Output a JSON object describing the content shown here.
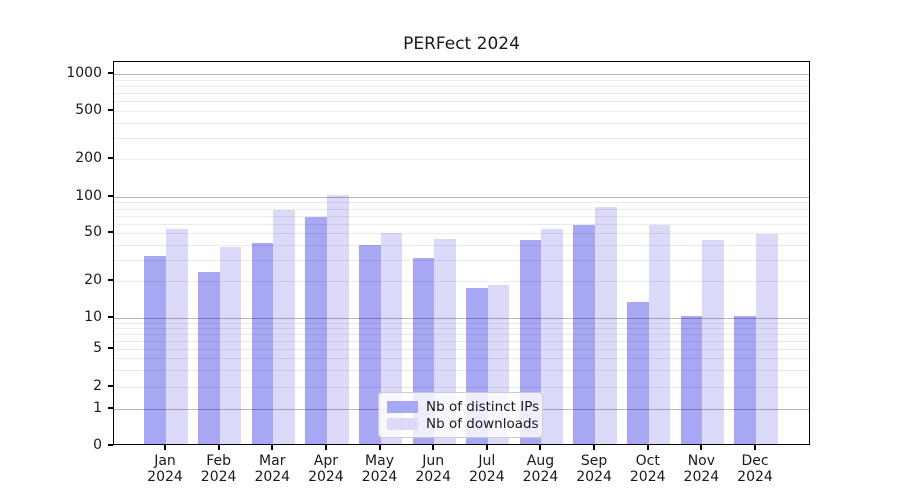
{
  "chart_data": {
    "type": "bar",
    "title": "PERFect 2024",
    "categories": [
      "Jan",
      "Feb",
      "Mar",
      "Apr",
      "May",
      "Jun",
      "Jul",
      "Aug",
      "Sep",
      "Oct",
      "Nov",
      "Dec"
    ],
    "year_label": "2024",
    "series": [
      {
        "name": "Nb of distinct IPs",
        "color": "#a7a7f3",
        "values": [
          31,
          23,
          40,
          66,
          38,
          30,
          17,
          42,
          56,
          13,
          10,
          10
        ]
      },
      {
        "name": "Nb of downloads",
        "color": "#dbdbf9",
        "values": [
          52,
          37,
          75,
          100,
          48,
          43,
          18,
          52,
          80,
          56,
          42,
          47
        ]
      }
    ],
    "yticks": [
      0,
      1,
      2,
      5,
      10,
      20,
      50,
      100,
      200,
      500,
      1000
    ],
    "yscale": "symlog",
    "ylim": [
      0,
      1000
    ],
    "xlabel": "",
    "ylabel": "",
    "grid": true,
    "legend_position": "lower center"
  }
}
